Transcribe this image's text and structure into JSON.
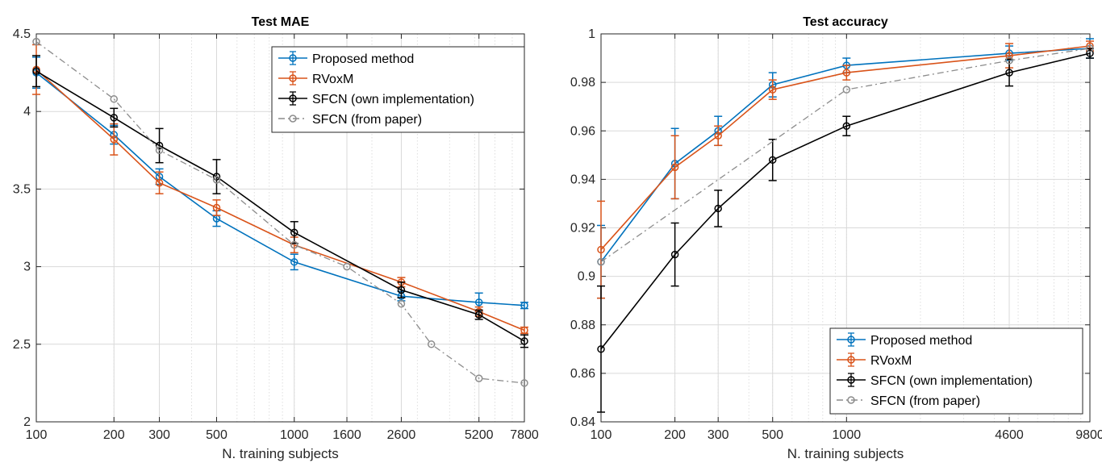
{
  "chart_data": [
    {
      "type": "line",
      "title": "Test MAE",
      "xlabel": "N. training subjects",
      "ylabel": "",
      "xscale": "log",
      "xlim": [
        100,
        7800
      ],
      "ylim": [
        2,
        4.5
      ],
      "xticks": [
        100,
        200,
        300,
        500,
        1000,
        1600,
        2600,
        5200,
        7800
      ],
      "yticks": [
        2,
        2.5,
        3,
        3.5,
        4,
        4.5
      ],
      "grid": true,
      "legend": "top-right",
      "series": [
        {
          "name": "Proposed method",
          "color": "#0072BD",
          "style": "solid",
          "x": [
            100,
            200,
            300,
            500,
            1000,
            2600,
            5200,
            7800
          ],
          "y": [
            4.25,
            3.85,
            3.58,
            3.31,
            3.03,
            2.81,
            2.77,
            2.75
          ],
          "err": [
            0.1,
            0.06,
            0.05,
            0.05,
            0.05,
            0.03,
            0.06,
            0.02
          ]
        },
        {
          "name": "RVoxM",
          "color": "#D95319",
          "style": "solid",
          "x": [
            100,
            200,
            300,
            500,
            1000,
            2600,
            5200,
            7800
          ],
          "y": [
            4.27,
            3.82,
            3.54,
            3.38,
            3.14,
            2.9,
            2.71,
            2.59
          ],
          "err": [
            0.16,
            0.1,
            0.07,
            0.05,
            0.05,
            0.03,
            0.03,
            0.02
          ]
        },
        {
          "name": "SFCN (own implementation)",
          "color": "#000000",
          "style": "solid",
          "x": [
            100,
            200,
            300,
            500,
            1000,
            2600,
            5200,
            7800
          ],
          "y": [
            4.26,
            3.96,
            3.78,
            3.58,
            3.22,
            2.85,
            2.69,
            2.52
          ],
          "err": [
            0.1,
            0.06,
            0.11,
            0.11,
            0.07,
            0.05,
            0.03,
            0.04
          ]
        },
        {
          "name": "SFCN (from paper)",
          "color": "#8C8C8C",
          "style": "dashdot",
          "x": [
            100,
            200,
            300,
            500,
            1000,
            1600,
            2600,
            3400,
            5200,
            7800
          ],
          "y": [
            4.45,
            4.08,
            3.75,
            3.56,
            3.14,
            3.0,
            2.76,
            2.5,
            2.28,
            2.25
          ],
          "err": []
        }
      ]
    },
    {
      "type": "line",
      "title": "Test accuracy",
      "xlabel": "N. training subjects",
      "ylabel": "",
      "xscale": "log",
      "xlim": [
        100,
        9800
      ],
      "ylim": [
        0.84,
        1.0
      ],
      "xticks": [
        100,
        200,
        300,
        500,
        1000,
        4600,
        9800
      ],
      "yticks": [
        0.84,
        0.86,
        0.88,
        0.9,
        0.92,
        0.94,
        0.96,
        0.98,
        1
      ],
      "ytick_labels": [
        "0.84",
        "0.86",
        "0.88",
        "0.9",
        "0.92",
        "0.94",
        "0.96",
        "0.98",
        "1"
      ],
      "grid": true,
      "legend": "bottom-right",
      "series": [
        {
          "name": "Proposed method",
          "color": "#0072BD",
          "style": "solid",
          "x": [
            100,
            200,
            300,
            500,
            1000,
            4600,
            9800
          ],
          "y": [
            0.906,
            0.9465,
            0.96,
            0.979,
            0.987,
            0.992,
            0.994
          ],
          "err": [
            0.015,
            0.0145,
            0.006,
            0.005,
            0.003,
            0.003,
            0.004
          ]
        },
        {
          "name": "RVoxM",
          "color": "#D95319",
          "style": "solid",
          "x": [
            100,
            200,
            300,
            500,
            1000,
            4600,
            9800
          ],
          "y": [
            0.911,
            0.945,
            0.958,
            0.977,
            0.984,
            0.991,
            0.995
          ],
          "err": [
            0.02,
            0.013,
            0.004,
            0.004,
            0.003,
            0.005,
            0.002
          ]
        },
        {
          "name": "SFCN (own implementation)",
          "color": "#000000",
          "style": "solid",
          "x": [
            100,
            200,
            300,
            500,
            1000,
            4600,
            9800
          ],
          "y": [
            0.87,
            0.909,
            0.928,
            0.948,
            0.962,
            0.984,
            0.992
          ],
          "err": [
            0.026,
            0.013,
            0.0075,
            0.0085,
            0.004,
            0.0055,
            0.002
          ]
        },
        {
          "name": "SFCN (from paper)",
          "color": "#8C8C8C",
          "style": "dashdot",
          "x": [
            100,
            1000,
            4600,
            9800
          ],
          "y": [
            0.906,
            0.977,
            0.989,
            0.994
          ],
          "err": []
        }
      ]
    }
  ]
}
